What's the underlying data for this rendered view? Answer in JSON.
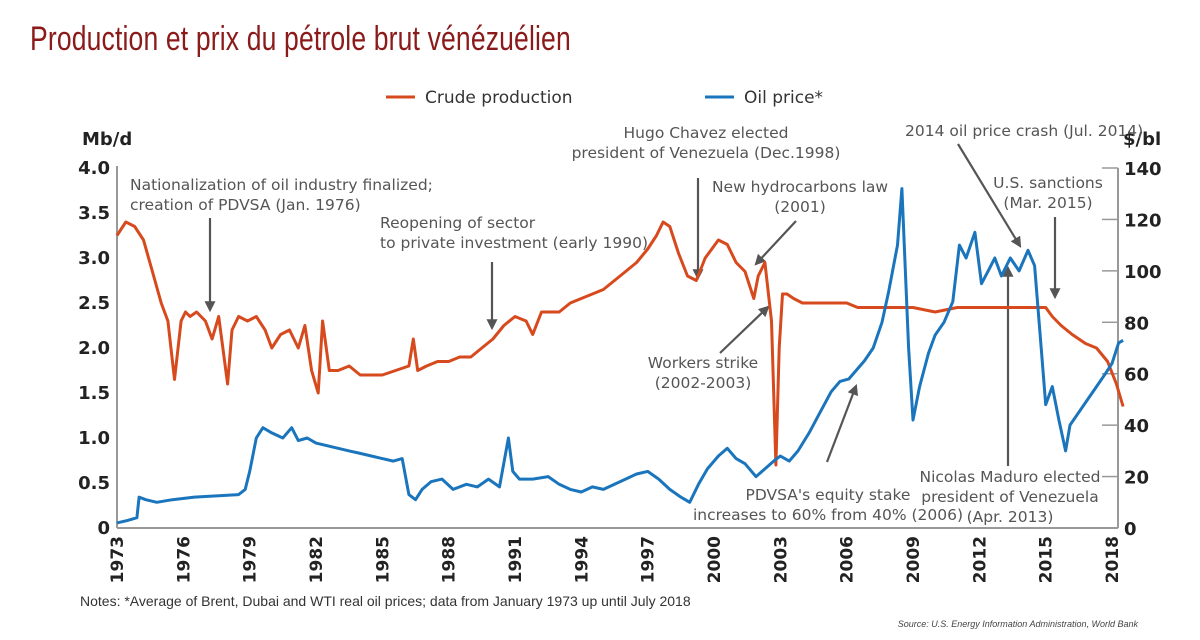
{
  "title": "Production et prix du pétrole brut vénézuélien",
  "notes": "Notes: *Average of Brent, Dubai and WTI real oil prices; data from January 1973 up until July 2018",
  "source": "Source: U.S. Energy Information Administration, World Bank",
  "chart_data": {
    "type": "line",
    "title": "Production et prix du pétrole brut vénézuélien",
    "legend_position": "top-center",
    "grid": false,
    "colors": {
      "production": "#d64a1e",
      "price": "#1a75bc",
      "title": "#8b1a1a",
      "annotation": "#555555"
    },
    "x_ticks": [
      "1973",
      "1976",
      "1979",
      "1982",
      "1985",
      "1988",
      "1991",
      "1994",
      "1997",
      "2000",
      "2003",
      "2006",
      "2009",
      "2012",
      "2015",
      "2018"
    ],
    "x_range": [
      1973,
      2018.6
    ],
    "left_axis": {
      "label": "Mb/d",
      "range": [
        0,
        4.0
      ],
      "ticks": [
        "0",
        "0.5",
        "1.0",
        "1.5",
        "2.0",
        "2.5",
        "3.0",
        "3.5",
        "4.0"
      ]
    },
    "right_axis": {
      "label": "$/bl",
      "range": [
        0,
        140
      ],
      "ticks": [
        "0",
        "20",
        "40",
        "60",
        "80",
        "100",
        "120",
        "140"
      ]
    },
    "series": [
      {
        "name": "Crude production",
        "axis": "left",
        "x": [
          1973,
          1973.4,
          1973.8,
          1974.2,
          1974.6,
          1975.0,
          1975.3,
          1975.6,
          1975.9,
          1976.1,
          1976.3,
          1976.6,
          1977.0,
          1977.3,
          1977.6,
          1978.0,
          1978.2,
          1978.5,
          1978.9,
          1979.3,
          1979.7,
          1980.0,
          1980.4,
          1980.8,
          1981.2,
          1981.5,
          1981.8,
          1982.1,
          1982.3,
          1982.6,
          1983.0,
          1983.5,
          1984.0,
          1984.5,
          1985.0,
          1985.6,
          1986.2,
          1986.4,
          1986.6,
          1987.0,
          1987.5,
          1988.0,
          1988.5,
          1989.0,
          1989.5,
          1990.0,
          1990.5,
          1991.0,
          1991.5,
          1991.8,
          1992.2,
          1993.0,
          1993.5,
          1994.0,
          1994.5,
          1995.0,
          1995.5,
          1996.0,
          1996.5,
          1997.0,
          1997.4,
          1997.7,
          1998.0,
          1998.4,
          1998.8,
          1999.2,
          1999.6,
          2000.2,
          2000.6,
          2001.0,
          2001.4,
          2001.8,
          2002.0,
          2002.3,
          2002.6,
          2002.8,
          2002.95,
          2003.1,
          2003.3,
          2003.6,
          2004.0,
          2005.0,
          2006.0,
          2006.5,
          2007.0,
          2008.0,
          2009.0,
          2010.0,
          2011.0,
          2012.0,
          2013.0,
          2014.0,
          2015.0,
          2015.3,
          2015.7,
          2016.2,
          2016.8,
          2017.3,
          2017.8,
          2018.2,
          2018.5
        ],
        "values": [
          3.25,
          3.4,
          3.35,
          3.2,
          2.85,
          2.5,
          2.3,
          1.65,
          2.3,
          2.4,
          2.35,
          2.4,
          2.3,
          2.1,
          2.35,
          1.6,
          2.2,
          2.35,
          2.3,
          2.35,
          2.2,
          2.0,
          2.15,
          2.2,
          2.0,
          2.25,
          1.75,
          1.5,
          2.3,
          1.75,
          1.75,
          1.8,
          1.7,
          1.7,
          1.7,
          1.75,
          1.8,
          2.1,
          1.75,
          1.8,
          1.85,
          1.85,
          1.9,
          1.9,
          2.0,
          2.1,
          2.25,
          2.35,
          2.3,
          2.15,
          2.4,
          2.4,
          2.5,
          2.55,
          2.6,
          2.65,
          2.75,
          2.85,
          2.95,
          3.1,
          3.25,
          3.4,
          3.35,
          3.05,
          2.8,
          2.75,
          3.0,
          3.2,
          3.15,
          2.95,
          2.85,
          2.55,
          2.8,
          2.95,
          2.3,
          0.7,
          2.0,
          2.6,
          2.6,
          2.55,
          2.5,
          2.5,
          2.5,
          2.45,
          2.45,
          2.45,
          2.45,
          2.4,
          2.45,
          2.45,
          2.45,
          2.45,
          2.45,
          2.35,
          2.25,
          2.15,
          2.05,
          2.0,
          1.85,
          1.6,
          1.35
        ]
      },
      {
        "name": "Oil price*",
        "axis": "right",
        "x": [
          1973,
          1973.5,
          1973.9,
          1974.0,
          1974.3,
          1974.8,
          1975.5,
          1976.5,
          1977.5,
          1978.5,
          1978.8,
          1979.0,
          1979.3,
          1979.6,
          1980.0,
          1980.5,
          1980.9,
          1981.2,
          1981.6,
          1982.0,
          1982.5,
          1983.0,
          1983.5,
          1984.0,
          1984.5,
          1985.0,
          1985.5,
          1985.9,
          1986.2,
          1986.5,
          1986.8,
          1987.2,
          1987.7,
          1988.2,
          1988.8,
          1989.3,
          1989.8,
          1990.3,
          1990.7,
          1990.9,
          1991.2,
          1991.8,
          1992.5,
          1993.0,
          1993.5,
          1994.0,
          1994.5,
          1995.0,
          1995.5,
          1996.0,
          1996.5,
          1997.0,
          1997.5,
          1998.0,
          1998.5,
          1998.9,
          1999.3,
          1999.7,
          2000.2,
          2000.6,
          2001.0,
          2001.4,
          2001.9,
          2002.3,
          2002.7,
          2003.0,
          2003.4,
          2003.8,
          2004.3,
          2004.8,
          2005.3,
          2005.7,
          2006.1,
          2006.5,
          2006.8,
          2007.2,
          2007.6,
          2007.9,
          2008.3,
          2008.5,
          2008.8,
          2009.0,
          2009.3,
          2009.7,
          2010.0,
          2010.4,
          2010.8,
          2011.1,
          2011.4,
          2011.8,
          2012.1,
          2012.4,
          2012.7,
          2013.0,
          2013.4,
          2013.8,
          2014.2,
          2014.5,
          2014.8,
          2015.0,
          2015.3,
          2015.6,
          2015.9,
          2016.1,
          2016.5,
          2016.9,
          2017.3,
          2017.7,
          2018.0,
          2018.3,
          2018.5
        ],
        "values": [
          2,
          3,
          4,
          12,
          11,
          10,
          11,
          12,
          12.5,
          13,
          15,
          22,
          35,
          39,
          37,
          35,
          39,
          34,
          35,
          33,
          32,
          31,
          30,
          29,
          28,
          27,
          26,
          27,
          13,
          11,
          15,
          18,
          19,
          15,
          17,
          16,
          19,
          16,
          35,
          22,
          19,
          19,
          20,
          17,
          15,
          14,
          16,
          15,
          17,
          19,
          21,
          22,
          19,
          15,
          12,
          10,
          17,
          23,
          28,
          31,
          27,
          25,
          20,
          23,
          26,
          28,
          26,
          30,
          37,
          45,
          53,
          57,
          58,
          62,
          65,
          70,
          80,
          92,
          110,
          132,
          70,
          42,
          55,
          68,
          75,
          80,
          88,
          110,
          105,
          115,
          95,
          100,
          105,
          98,
          105,
          100,
          108,
          102,
          70,
          48,
          55,
          42,
          30,
          40,
          45,
          50,
          55,
          60,
          64,
          72,
          73
        ]
      }
    ],
    "annotations": [
      {
        "text": [
          "Nationalization of oil industry finalized;",
          "creation of PDVSA (Jan. 1976)"
        ],
        "x": 1976,
        "target_series": "Crude production"
      },
      {
        "text": [
          "Reopening of sector",
          "to private investment (early 1990)"
        ],
        "x": 1990,
        "target_series": "Crude production"
      },
      {
        "text": [
          "Hugo Chavez elected",
          "president of Venezuela (Dec.1998)"
        ],
        "x": 1998.9,
        "target_series": "Crude production"
      },
      {
        "text": [
          "New hydrocarbons law",
          "(2001)"
        ],
        "x": 2001.8,
        "target_series": "Crude production"
      },
      {
        "text": [
          "Workers strike",
          "(2002-2003)"
        ],
        "x": 2003,
        "target_series": "Crude production"
      },
      {
        "text": [
          "2014 oil price crash (Jul. 2014)"
        ],
        "x": 2014.5,
        "target_series": "Oil price*"
      },
      {
        "text": [
          "U.S. sanctions",
          "(Mar. 2015)"
        ],
        "x": 2015.2,
        "target_series": "Crude production"
      },
      {
        "text": [
          "PDVSA's equity stake",
          "increases to 60% from 40% (2006)"
        ],
        "x": 2006.5,
        "target_series": "Oil price*"
      },
      {
        "text": [
          "Nicolas Maduro elected",
          "president of Venezuela",
          "(Apr. 2013)"
        ],
        "x": 2013.3,
        "target_series": "Oil price*"
      }
    ]
  }
}
